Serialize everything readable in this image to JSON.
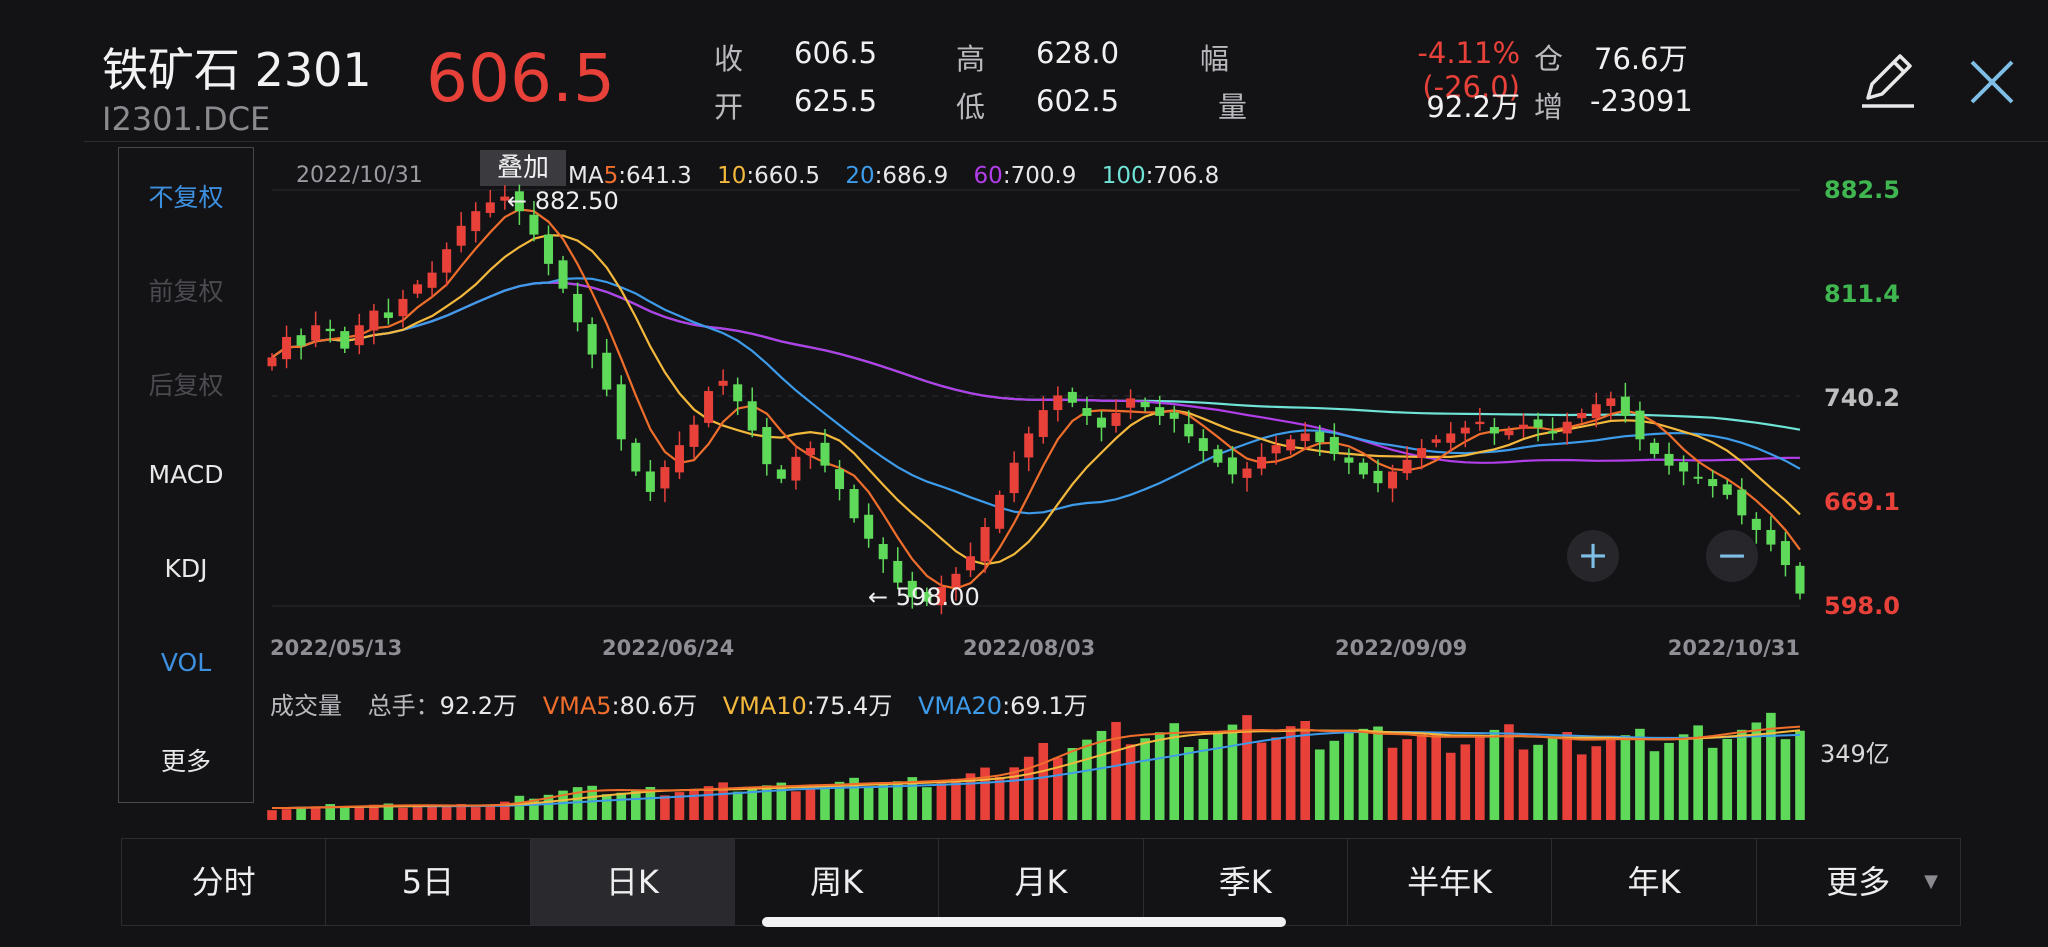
{
  "header": {
    "name": "铁矿石 2301",
    "code": "I2301.DCE",
    "price": "606.5",
    "quote": {
      "close_label": "收",
      "close": "606.5",
      "open_label": "开",
      "open": "625.5",
      "high_label": "高",
      "high": "628.0",
      "low_label": "低",
      "low": "602.5",
      "range_label": "幅",
      "range": "-4.11%(-26.0)",
      "volume_label": "量",
      "volume": "92.2万",
      "position_label": "仓",
      "position": "76.6万",
      "increase_label": "增",
      "increase": "-23091"
    },
    "edit_icon": "pencil-icon",
    "close_icon": "close-icon"
  },
  "sidebar": {
    "items": [
      {
        "label": "不复权",
        "state": "active"
      },
      {
        "label": "前复权",
        "state": "disabled"
      },
      {
        "label": "后复权",
        "state": "disabled"
      },
      {
        "label": "MACD",
        "state": "normal"
      },
      {
        "label": "KDJ",
        "state": "normal"
      },
      {
        "label": "VOL",
        "state": "active"
      },
      {
        "label": "更多",
        "state": "normal"
      }
    ]
  },
  "overlay_button": "叠加",
  "ma_legend": {
    "date": "2022/10/31",
    "items": [
      {
        "period": "MA5",
        "value": "641.3",
        "color": "#f06e2c"
      },
      {
        "period": "10",
        "value": "660.5",
        "color": "#f3b83c"
      },
      {
        "period": "20",
        "value": "686.9",
        "color": "#3d9be9"
      },
      {
        "period": "60",
        "value": "700.9",
        "color": "#b13ee8"
      },
      {
        "period": "100",
        "value": "706.8",
        "color": "#6fe3d6"
      }
    ]
  },
  "vol_legend": {
    "title": "成交量",
    "total_label": "总手",
    "total": "92.2万",
    "items": [
      {
        "period": "VMA5",
        "value": "80.6万",
        "color": "#f06e2c"
      },
      {
        "period": "VMA10",
        "value": "75.4万",
        "color": "#f3b83c"
      },
      {
        "period": "VMA20",
        "value": "69.1万",
        "color": "#3d9be9"
      }
    ]
  },
  "tabs": [
    {
      "label": "分时",
      "active": false
    },
    {
      "label": "5日",
      "active": false
    },
    {
      "label": "日K",
      "active": true
    },
    {
      "label": "周K",
      "active": false
    },
    {
      "label": "月K",
      "active": false
    },
    {
      "label": "季K",
      "active": false
    },
    {
      "label": "半年K",
      "active": false
    },
    {
      "label": "年K",
      "active": false
    },
    {
      "label": "更多",
      "active": false
    }
  ],
  "colors": {
    "up": "#e8413a",
    "down": "#5fd95a",
    "background": "#131316"
  },
  "chart_data": {
    "type": "candlestick",
    "x_ticks": [
      "2022/05/13",
      "2022/06/24",
      "2022/08/03",
      "2022/09/09",
      "2022/10/31"
    ],
    "y_ticks": [
      {
        "label": "882.5",
        "value": 882.5,
        "color": "#3fb650"
      },
      {
        "label": "811.4",
        "value": 811.4,
        "color": "#3fb650"
      },
      {
        "label": "740.2",
        "value": 740.2,
        "color": "#bdbdbd"
      },
      {
        "label": "669.1",
        "value": 669.1,
        "color": "#e8413a"
      },
      {
        "label": "598.0",
        "value": 598.0,
        "color": "#e8413a"
      }
    ],
    "ylim": [
      598.0,
      882.5
    ],
    "annotations": [
      {
        "text": "882.50",
        "value": 882.5,
        "type": "high"
      },
      {
        "text": "598.00",
        "value": 598.0,
        "type": "low"
      }
    ],
    "close_trend": [
      768,
      782,
      776,
      790,
      786,
      774,
      790,
      800,
      795,
      808,
      818,
      826,
      842,
      858,
      868,
      874,
      878,
      868,
      852,
      832,
      815,
      792,
      770,
      746,
      712,
      690,
      676,
      693,
      708,
      722,
      745,
      752,
      738,
      718,
      695,
      685,
      700,
      706,
      694,
      678,
      658,
      644,
      630,
      614,
      604,
      601,
      611,
      620,
      632,
      652,
      674,
      696,
      716,
      732,
      742,
      737,
      728,
      720,
      730,
      740,
      734,
      728,
      726,
      714,
      704,
      696,
      688,
      692,
      700,
      708,
      712,
      716,
      710,
      702,
      696,
      688,
      682,
      690,
      698,
      706,
      712,
      716,
      720,
      724,
      716,
      718,
      722,
      720,
      716,
      724,
      730,
      736,
      740,
      728,
      712,
      702,
      694,
      690,
      686,
      680,
      674,
      660,
      650,
      640,
      626,
      606.5
    ],
    "volume": {
      "axis_label": "349亿",
      "trend": [
        12,
        12,
        13,
        13,
        14,
        14,
        14,
        15,
        15,
        15,
        15,
        14,
        14,
        14,
        15,
        16,
        18,
        22,
        26,
        28,
        30,
        31,
        30,
        30,
        29,
        29,
        30,
        30,
        31,
        31,
        32,
        33,
        33,
        34,
        34,
        34,
        35,
        36,
        36,
        36,
        37,
        38,
        38,
        38,
        39,
        40,
        41,
        42,
        44,
        46,
        50,
        56,
        62,
        70,
        76,
        80,
        82,
        84,
        86,
        88,
        87,
        86,
        88,
        89,
        90,
        88,
        90,
        92,
        90,
        88,
        92,
        90,
        86,
        88,
        90,
        86,
        82,
        84,
        86,
        84,
        80,
        82,
        84,
        86,
        85,
        84,
        82,
        80,
        80,
        80,
        80,
        82,
        82,
        80,
        80,
        80,
        82,
        84,
        86,
        88,
        90,
        92,
        92,
        94,
        94,
        95
      ]
    }
  }
}
